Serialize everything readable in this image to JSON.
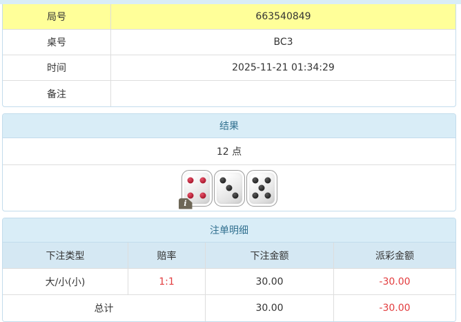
{
  "info_table": {
    "rows": [
      {
        "label": "局号",
        "value": "663540849"
      },
      {
        "label": "桌号",
        "value": "BC3"
      },
      {
        "label": "时间",
        "value": "2025-11-21 01:34:29"
      },
      {
        "label": "备注",
        "value": ""
      }
    ]
  },
  "result_panel": {
    "title": "结果",
    "points": "12 点",
    "dice": [
      {
        "value": 4,
        "color": "red"
      },
      {
        "value": 3,
        "color": "black"
      },
      {
        "value": 5,
        "color": "black"
      }
    ],
    "info_badge": "i"
  },
  "bets_panel": {
    "title": "注单明细",
    "columns": [
      "下注类型",
      "赔率",
      "下注金额",
      "派彩金额"
    ],
    "rows": [
      {
        "type": "大/小(小)",
        "odds": "1:1",
        "bet": "30.00",
        "payout": "-30.00"
      }
    ],
    "total": {
      "label": "总计",
      "bet": "30.00",
      "payout": "-30.00"
    }
  },
  "colors": {
    "panel_border": "#c2dcec",
    "panel_header_bg": "#d9edf7",
    "panel_header_text": "#31708f",
    "highlight_row_bg": "#ffff99",
    "row_border": "#dddddd",
    "text": "#333333",
    "negative_red": "#e23b3d"
  }
}
